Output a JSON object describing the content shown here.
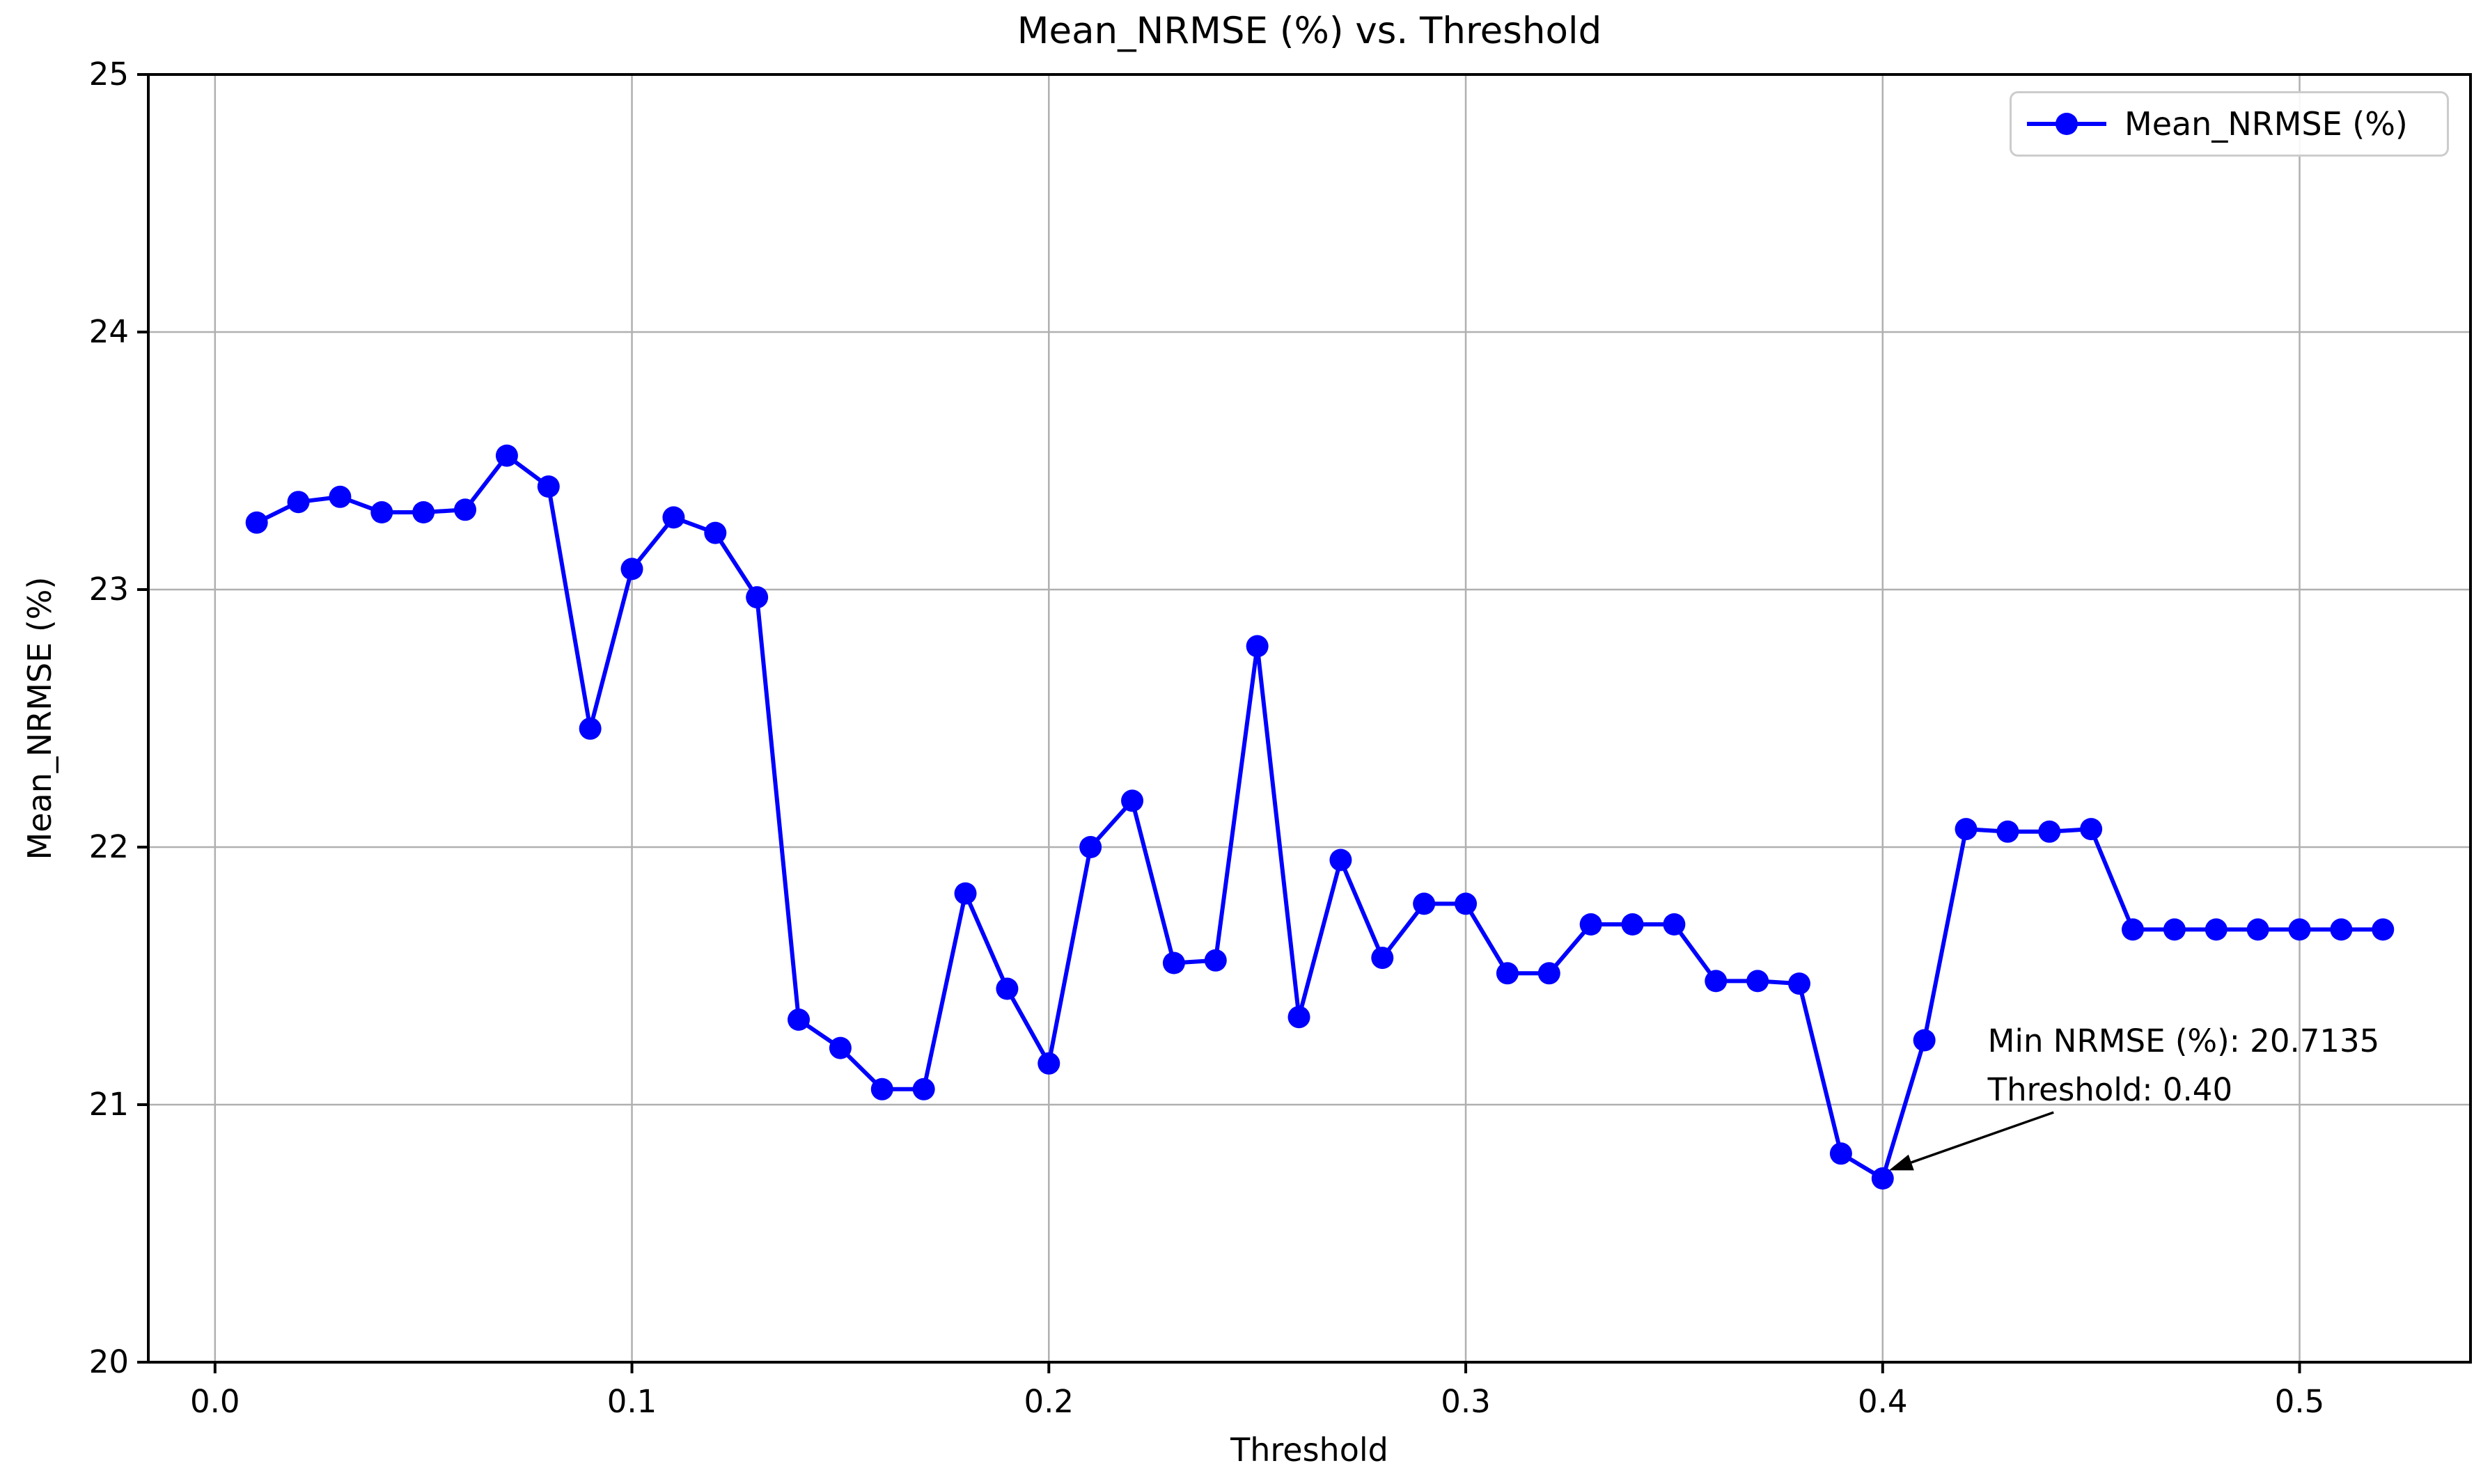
{
  "chart_data": {
    "type": "line",
    "title": "Mean_NRMSE (%) vs. Threshold",
    "xlabel": "Threshold",
    "ylabel": "Mean_NRMSE (%)",
    "xlim": [
      -0.016,
      0.541
    ],
    "ylim": [
      20,
      25
    ],
    "x_ticks": [
      0.0,
      0.1,
      0.2,
      0.3,
      0.4,
      0.5
    ],
    "x_tick_labels": [
      "0.0",
      "0.1",
      "0.2",
      "0.3",
      "0.4",
      "0.5"
    ],
    "y_ticks": [
      20,
      21,
      22,
      23,
      24,
      25
    ],
    "y_tick_labels": [
      "20",
      "21",
      "22",
      "23",
      "24",
      "25"
    ],
    "grid": true,
    "legend_position": "upper right",
    "colors": {
      "series": "#0000ff",
      "grid": "#b0b0b0",
      "spine": "#000000",
      "legend_border": "#cccccc",
      "annotation_arrow": "#000000",
      "background": "#ffffff"
    },
    "series": [
      {
        "name": "Mean_NRMSE (%)",
        "color": "#0000ff",
        "marker": "circle",
        "x": [
          0.01,
          0.02,
          0.03,
          0.04,
          0.05,
          0.06,
          0.07,
          0.08,
          0.09,
          0.1,
          0.11,
          0.12,
          0.13,
          0.14,
          0.15,
          0.16,
          0.17,
          0.18,
          0.19,
          0.2,
          0.21,
          0.22,
          0.23,
          0.24,
          0.25,
          0.26,
          0.27,
          0.28,
          0.29,
          0.3,
          0.31,
          0.32,
          0.33,
          0.34,
          0.35,
          0.36,
          0.37,
          0.38,
          0.39,
          0.4,
          0.41,
          0.42,
          0.43,
          0.44,
          0.45,
          0.46,
          0.47,
          0.48,
          0.49,
          0.5,
          0.51,
          0.52
        ],
        "y": [
          23.26,
          23.34,
          23.36,
          23.3,
          23.3,
          23.31,
          23.52,
          23.4,
          22.46,
          23.08,
          23.28,
          23.22,
          22.97,
          21.33,
          21.22,
          21.06,
          21.06,
          21.82,
          21.45,
          21.16,
          22.0,
          22.18,
          21.55,
          21.56,
          22.78,
          21.34,
          21.95,
          21.57,
          21.78,
          21.78,
          21.51,
          21.51,
          21.7,
          21.7,
          21.7,
          21.48,
          21.48,
          21.47,
          20.81,
          20.7135,
          21.25,
          22.07,
          22.06,
          22.06,
          22.07,
          21.68,
          21.68,
          21.68,
          21.68,
          21.68,
          21.68,
          21.68
        ]
      }
    ],
    "legend": {
      "entries": [
        {
          "label": "Mean_NRMSE (%)",
          "color": "#0000ff",
          "marker": "circle"
        }
      ]
    },
    "annotation": {
      "lines": [
        "Min NRMSE (%): 20.7135",
        "Threshold: 0.40"
      ],
      "text_anchor_data": [
        0.4252,
        21.34
      ],
      "arrow_from_data": [
        0.441,
        20.97
      ],
      "arrow_to_data": [
        0.4015,
        20.745
      ]
    }
  }
}
